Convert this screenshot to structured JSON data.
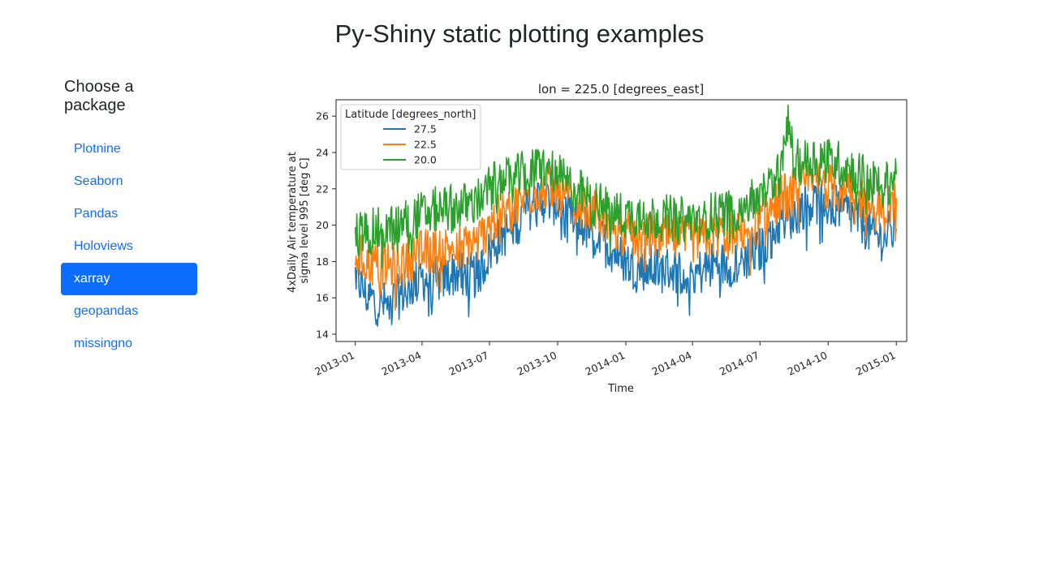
{
  "page": {
    "title": "Py-Shiny static plotting examples"
  },
  "sidebar": {
    "heading": "Choose a package",
    "selected": "xarray",
    "items": [
      {
        "label": "Plotnine",
        "active": false
      },
      {
        "label": "Seaborn",
        "active": false
      },
      {
        "label": "Pandas",
        "active": false
      },
      {
        "label": "Holoviews",
        "active": false
      },
      {
        "label": "xarray",
        "active": true
      },
      {
        "label": "geopandas",
        "active": false
      },
      {
        "label": "missingno",
        "active": false
      }
    ]
  },
  "colors": {
    "accent": "#0d6efd",
    "link": "#0d6efd",
    "text": "#212529"
  },
  "chart_data": {
    "type": "line",
    "title": "lon = 225.0 [degrees_east]",
    "xlabel": "Time",
    "ylabel_lines": [
      "4xDaily Air temperature at",
      "sigma level 995 [deg C]"
    ],
    "x_ticks": [
      "2013-01",
      "2013-04",
      "2013-07",
      "2013-10",
      "2014-01",
      "2014-04",
      "2014-07",
      "2014-10",
      "2015-01"
    ],
    "y_ticks": [
      14,
      16,
      18,
      20,
      22,
      24,
      26
    ],
    "xlim": [
      "2012-12-06",
      "2015-01-15"
    ],
    "ylim": [
      13.6,
      26.9
    ],
    "grid": false,
    "legend": {
      "title": "Latitude [degrees_north]",
      "placement": "upper-left"
    },
    "series": [
      {
        "name": "27.5",
        "color": "#1f77b4",
        "points": [
          [
            "2013-01-01",
            17.3
          ],
          [
            "2013-01-15",
            16.2
          ],
          [
            "2013-02-01",
            15.7
          ],
          [
            "2013-02-15",
            15.6
          ],
          [
            "2013-03-01",
            16.1
          ],
          [
            "2013-03-15",
            16.6
          ],
          [
            "2013-04-01",
            17.1
          ],
          [
            "2013-04-15",
            16.9
          ],
          [
            "2013-05-01",
            17.1
          ],
          [
            "2013-05-15",
            17.4
          ],
          [
            "2013-06-01",
            17.3
          ],
          [
            "2013-06-15",
            17.2
          ],
          [
            "2013-07-01",
            18.5
          ],
          [
            "2013-07-15",
            19.3
          ],
          [
            "2013-08-01",
            19.9
          ],
          [
            "2013-08-15",
            20.6
          ],
          [
            "2013-09-01",
            21.3
          ],
          [
            "2013-09-15",
            21.4
          ],
          [
            "2013-10-01",
            21.2
          ],
          [
            "2013-10-15",
            20.6
          ],
          [
            "2013-11-01",
            20.1
          ],
          [
            "2013-11-15",
            19.6
          ],
          [
            "2013-12-01",
            19.1
          ],
          [
            "2013-12-15",
            18.6
          ],
          [
            "2014-01-01",
            18.0
          ],
          [
            "2014-01-15",
            17.6
          ],
          [
            "2014-02-01",
            17.7
          ],
          [
            "2014-02-15",
            17.5
          ],
          [
            "2014-03-01",
            17.6
          ],
          [
            "2014-03-15",
            17.4
          ],
          [
            "2014-04-01",
            17.3
          ],
          [
            "2014-04-15",
            17.5
          ],
          [
            "2014-05-01",
            17.9
          ],
          [
            "2014-05-15",
            17.8
          ],
          [
            "2014-06-01",
            18.0
          ],
          [
            "2014-06-15",
            18.3
          ],
          [
            "2014-07-01",
            18.6
          ],
          [
            "2014-07-15",
            19.4
          ],
          [
            "2014-08-01",
            20.4
          ],
          [
            "2014-08-15",
            20.5
          ],
          [
            "2014-09-01",
            21.2
          ],
          [
            "2014-09-15",
            21.3
          ],
          [
            "2014-10-01",
            21.1
          ],
          [
            "2014-10-15",
            21.0
          ],
          [
            "2014-11-01",
            20.6
          ],
          [
            "2014-11-15",
            20.2
          ],
          [
            "2014-12-01",
            19.4
          ],
          [
            "2014-12-15",
            19.3
          ],
          [
            "2015-01-01",
            19.8
          ]
        ]
      },
      {
        "name": "22.5",
        "color": "#ff7f0e",
        "points": [
          [
            "2013-01-01",
            18.5
          ],
          [
            "2013-01-15",
            18.0
          ],
          [
            "2013-02-01",
            17.8
          ],
          [
            "2013-02-15",
            17.7
          ],
          [
            "2013-03-01",
            17.9
          ],
          [
            "2013-03-15",
            18.2
          ],
          [
            "2013-04-01",
            18.5
          ],
          [
            "2013-04-15",
            18.6
          ],
          [
            "2013-05-01",
            18.7
          ],
          [
            "2013-05-15",
            18.9
          ],
          [
            "2013-06-01",
            19.0
          ],
          [
            "2013-06-15",
            19.1
          ],
          [
            "2013-07-01",
            20.0
          ],
          [
            "2013-07-15",
            20.5
          ],
          [
            "2013-08-01",
            20.9
          ],
          [
            "2013-08-15",
            21.4
          ],
          [
            "2013-09-01",
            21.9
          ],
          [
            "2013-09-15",
            22.1
          ],
          [
            "2013-10-01",
            21.8
          ],
          [
            "2013-10-15",
            21.4
          ],
          [
            "2013-11-01",
            21.1
          ],
          [
            "2013-11-15",
            20.7
          ],
          [
            "2013-12-01",
            20.4
          ],
          [
            "2013-12-15",
            20.0
          ],
          [
            "2014-01-01",
            19.6
          ],
          [
            "2014-01-15",
            19.4
          ],
          [
            "2014-02-01",
            19.4
          ],
          [
            "2014-02-15",
            19.3
          ],
          [
            "2014-03-01",
            19.3
          ],
          [
            "2014-03-15",
            19.2
          ],
          [
            "2014-04-01",
            19.2
          ],
          [
            "2014-04-15",
            19.3
          ],
          [
            "2014-05-01",
            19.5
          ],
          [
            "2014-05-15",
            19.6
          ],
          [
            "2014-06-01",
            19.7
          ],
          [
            "2014-06-15",
            19.9
          ],
          [
            "2014-07-01",
            20.2
          ],
          [
            "2014-07-15",
            20.8
          ],
          [
            "2014-08-01",
            21.6
          ],
          [
            "2014-08-15",
            21.8
          ],
          [
            "2014-09-01",
            22.3
          ],
          [
            "2014-09-15",
            22.4
          ],
          [
            "2014-10-01",
            22.2
          ],
          [
            "2014-10-15",
            22.0
          ],
          [
            "2014-11-01",
            21.8
          ],
          [
            "2014-11-15",
            21.5
          ],
          [
            "2014-12-01",
            21.0
          ],
          [
            "2014-12-15",
            20.8
          ],
          [
            "2015-01-01",
            21.5
          ]
        ]
      },
      {
        "name": "20.0",
        "color": "#2ca02c",
        "points": [
          [
            "2013-01-01",
            19.5
          ],
          [
            "2013-01-15",
            19.6
          ],
          [
            "2013-02-01",
            19.7
          ],
          [
            "2013-02-15",
            19.8
          ],
          [
            "2013-03-01",
            20.0
          ],
          [
            "2013-03-15",
            20.3
          ],
          [
            "2013-04-01",
            20.6
          ],
          [
            "2013-04-15",
            20.8
          ],
          [
            "2013-05-01",
            20.9
          ],
          [
            "2013-05-15",
            21.0
          ],
          [
            "2013-06-01",
            21.1
          ],
          [
            "2013-06-15",
            21.3
          ],
          [
            "2013-07-01",
            22.1
          ],
          [
            "2013-07-15",
            22.4
          ],
          [
            "2013-08-01",
            22.5
          ],
          [
            "2013-08-15",
            22.8
          ],
          [
            "2013-09-01",
            23.1
          ],
          [
            "2013-09-15",
            23.2
          ],
          [
            "2013-10-01",
            22.7
          ],
          [
            "2013-10-15",
            22.2
          ],
          [
            "2013-11-01",
            21.8
          ],
          [
            "2013-11-15",
            21.3
          ],
          [
            "2013-12-01",
            21.0
          ],
          [
            "2013-12-15",
            20.7
          ],
          [
            "2014-01-01",
            20.5
          ],
          [
            "2014-01-15",
            20.6
          ],
          [
            "2014-02-01",
            20.5
          ],
          [
            "2014-02-15",
            20.4
          ],
          [
            "2014-03-01",
            20.4
          ],
          [
            "2014-03-15",
            20.3
          ],
          [
            "2014-04-01",
            20.3
          ],
          [
            "2014-04-15",
            20.4
          ],
          [
            "2014-05-01",
            20.6
          ],
          [
            "2014-05-15",
            20.7
          ],
          [
            "2014-06-01",
            20.9
          ],
          [
            "2014-06-15",
            21.2
          ],
          [
            "2014-07-01",
            21.6
          ],
          [
            "2014-07-15",
            22.2
          ],
          [
            "2014-08-01",
            23.2
          ],
          [
            "2014-08-08",
            26.5
          ],
          [
            "2014-08-15",
            23.4
          ],
          [
            "2014-09-01",
            23.5
          ],
          [
            "2014-09-15",
            23.7
          ],
          [
            "2014-10-01",
            23.6
          ],
          [
            "2014-10-15",
            23.4
          ],
          [
            "2014-11-01",
            23.1
          ],
          [
            "2014-11-15",
            22.7
          ],
          [
            "2014-12-01",
            22.3
          ],
          [
            "2014-12-15",
            22.1
          ],
          [
            "2015-01-01",
            22.8
          ]
        ]
      }
    ]
  }
}
